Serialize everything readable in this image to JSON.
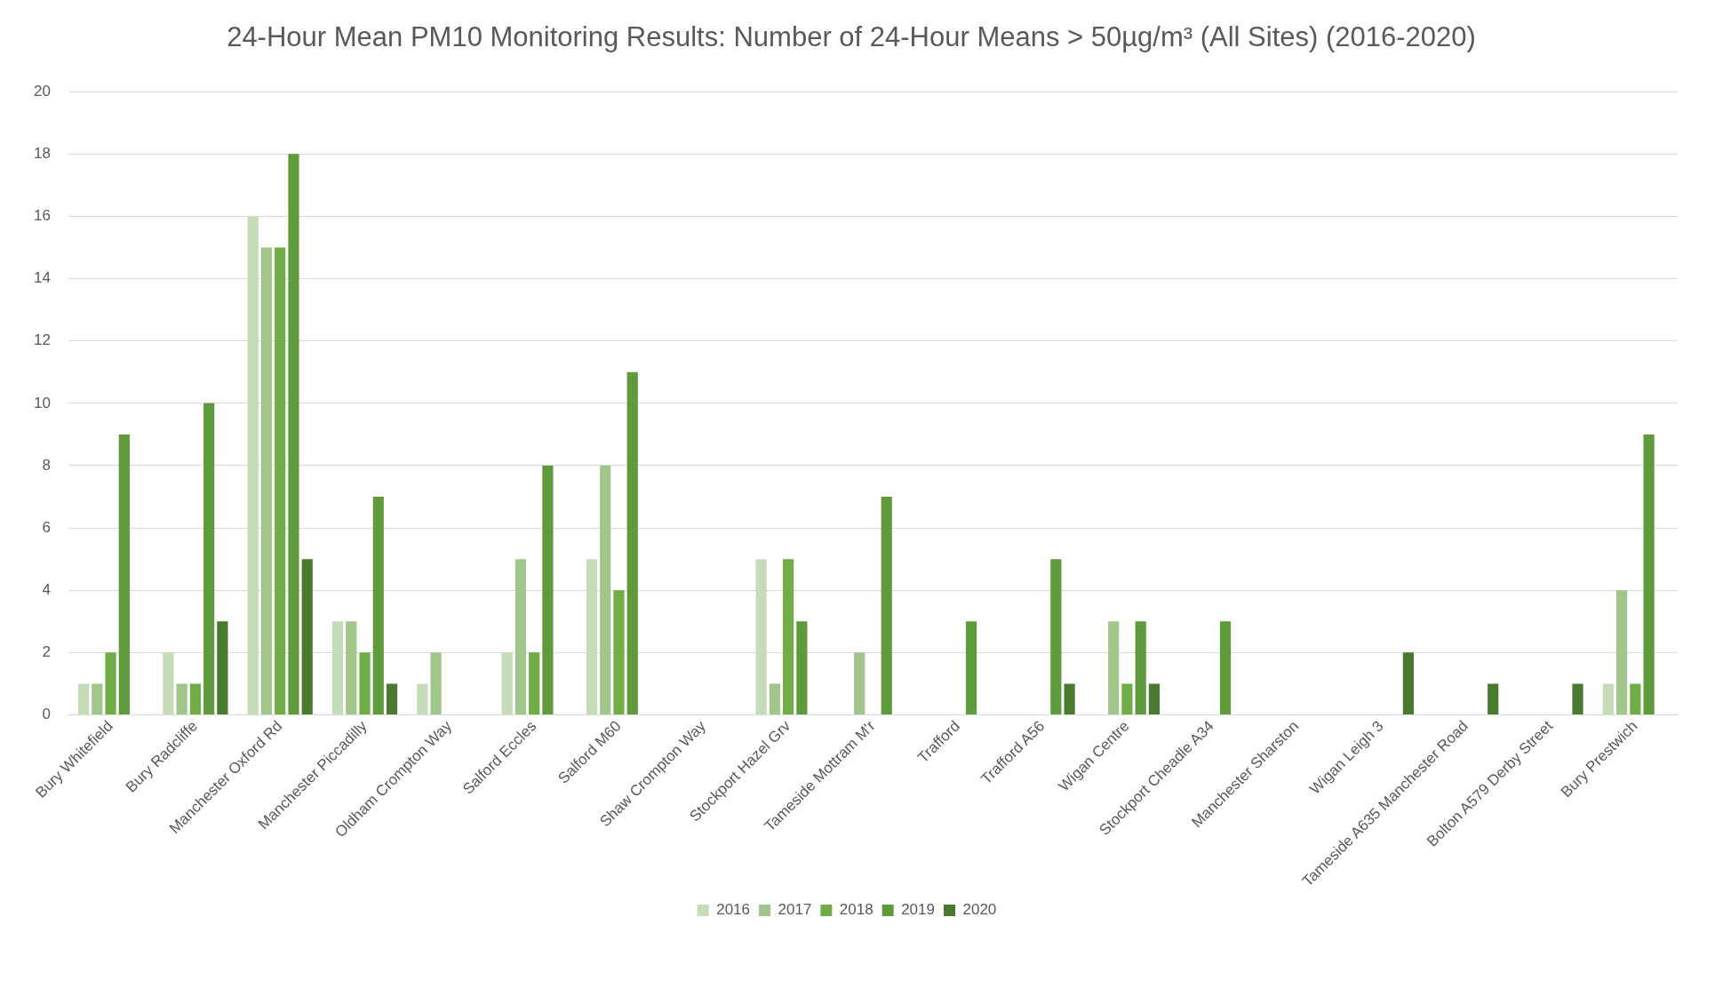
{
  "chart_data": {
    "type": "bar",
    "title": "24-Hour Mean PM10 Monitoring Results: Number of 24-Hour Means > 50µg/m³ (All Sites) (2016-2020)",
    "categories": [
      "Bury Whitefield",
      "Bury Radcliffe",
      "Manchester Oxford Rd",
      "Manchester Piccadilly",
      "Oldham Crompton Way",
      "Salford Eccles",
      "Salford M60",
      "Shaw Crompton Way",
      "Stockport Hazel Grv",
      "Tameside Mottram M'r",
      "Trafford",
      "Trafford A56",
      "Wigan Centre",
      "Stockport Cheadle A34",
      "Manchester Sharston",
      "Wigan Leigh 3",
      "Tameside A635 Manchester Road",
      "Bolton A579 Derby Street",
      "Bury Prestwich"
    ],
    "series": [
      {
        "name": "2016",
        "color": "#c5dcb8",
        "values": [
          1,
          2,
          16,
          3,
          1,
          2,
          5,
          null,
          5,
          null,
          null,
          null,
          null,
          null,
          null,
          null,
          null,
          null,
          1
        ]
      },
      {
        "name": "2017",
        "color": "#a0c68c",
        "values": [
          1,
          1,
          15,
          3,
          2,
          5,
          8,
          null,
          1,
          2,
          null,
          null,
          3,
          null,
          null,
          null,
          null,
          null,
          4
        ]
      },
      {
        "name": "2018",
        "color": "#70ad47",
        "values": [
          2,
          1,
          15,
          2,
          null,
          2,
          4,
          null,
          5,
          null,
          null,
          null,
          1,
          null,
          null,
          null,
          null,
          null,
          1
        ]
      },
      {
        "name": "2019",
        "color": "#5f9a3c",
        "values": [
          9,
          10,
          18,
          7,
          null,
          8,
          11,
          null,
          3,
          7,
          3,
          5,
          3,
          3,
          null,
          null,
          null,
          null,
          9
        ]
      },
      {
        "name": "2020",
        "color": "#4a7a2f",
        "values": [
          null,
          3,
          5,
          1,
          null,
          null,
          null,
          null,
          null,
          null,
          null,
          1,
          1,
          null,
          null,
          2,
          1,
          1,
          null
        ]
      }
    ],
    "ylim": [
      0,
      20
    ],
    "yticks": [
      0,
      2,
      4,
      6,
      8,
      10,
      12,
      14,
      16,
      18,
      20
    ],
    "grid": "y",
    "legend": "bottom"
  }
}
